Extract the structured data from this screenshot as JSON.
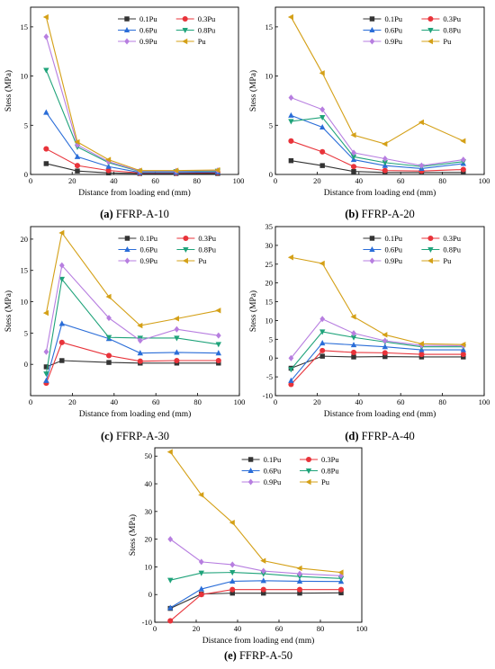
{
  "chart_data": [
    {
      "type": "line",
      "caption_letter": "(a)",
      "caption_text": " FFRP-A-10",
      "xlabel": "Distance from loading end (mm)",
      "ylabel": "Stess (MPa)",
      "xlim": [
        0,
        100
      ],
      "ylim": [
        0,
        17
      ],
      "xticks": [
        0,
        20,
        40,
        60,
        80,
        100
      ],
      "yticks": [
        0,
        5,
        10,
        15
      ],
      "x": [
        7.5,
        22.5,
        37.5,
        52.5,
        70,
        90
      ],
      "series": [
        {
          "name": "0.1Pu",
          "color": "#333333",
          "marker": "square",
          "values": [
            1.1,
            0.35,
            0.15,
            0.1,
            0.1,
            0.1
          ]
        },
        {
          "name": "0.3Pu",
          "color": "#e8333a",
          "marker": "circle",
          "values": [
            2.6,
            0.9,
            0.4,
            0.15,
            0.15,
            0.2
          ]
        },
        {
          "name": "0.6Pu",
          "color": "#2a6dd8",
          "marker": "tri-up",
          "values": [
            6.3,
            1.8,
            0.8,
            0.2,
            0.2,
            0.25
          ]
        },
        {
          "name": "0.8Pu",
          "color": "#1fa37a",
          "marker": "tri-down",
          "values": [
            10.6,
            2.8,
            1.2,
            0.3,
            0.3,
            0.35
          ]
        },
        {
          "name": "0.9Pu",
          "color": "#b77ee0",
          "marker": "diamond",
          "values": [
            14.0,
            3.0,
            1.3,
            0.35,
            0.35,
            0.4
          ]
        },
        {
          "name": "Pu",
          "color": "#d4a017",
          "marker": "tri-left",
          "values": [
            16.0,
            3.3,
            1.5,
            0.4,
            0.4,
            0.45
          ]
        }
      ]
    },
    {
      "type": "line",
      "caption_letter": "(b)",
      "caption_text": " FFRP-A-20",
      "xlabel": "Distance from loading end (mm)",
      "ylabel": "Stess (MPa)",
      "xlim": [
        0,
        100
      ],
      "ylim": [
        0,
        17
      ],
      "xticks": [
        0,
        20,
        40,
        60,
        80,
        100
      ],
      "yticks": [
        0,
        5,
        10,
        15
      ],
      "x": [
        7.5,
        22.5,
        37.5,
        52.5,
        70,
        90
      ],
      "series": [
        {
          "name": "0.1Pu",
          "color": "#333333",
          "marker": "square",
          "values": [
            1.4,
            0.9,
            0.3,
            0.2,
            0.2,
            0.2
          ]
        },
        {
          "name": "0.3Pu",
          "color": "#e8333a",
          "marker": "circle",
          "values": [
            3.4,
            2.3,
            0.8,
            0.4,
            0.35,
            0.5
          ]
        },
        {
          "name": "0.6Pu",
          "color": "#2a6dd8",
          "marker": "tri-up",
          "values": [
            6.0,
            4.8,
            1.5,
            0.9,
            0.6,
            1.1
          ]
        },
        {
          "name": "0.8Pu",
          "color": "#1fa37a",
          "marker": "tri-down",
          "values": [
            5.4,
            5.8,
            1.8,
            1.2,
            0.8,
            1.3
          ]
        },
        {
          "name": "0.9Pu",
          "color": "#b77ee0",
          "marker": "diamond",
          "values": [
            7.8,
            6.6,
            2.2,
            1.6,
            0.9,
            1.5
          ]
        },
        {
          "name": "Pu",
          "color": "#d4a017",
          "marker": "tri-left",
          "values": [
            16.0,
            10.3,
            4.0,
            3.1,
            5.3,
            3.4
          ]
        }
      ]
    },
    {
      "type": "line",
      "caption_letter": "(c)",
      "caption_text": " FFRP-A-30",
      "xlabel": "Distance from loading end (mm)",
      "ylabel": "Stess (MPa)",
      "xlim": [
        0,
        100
      ],
      "ylim": [
        -5,
        22
      ],
      "xticks": [
        0,
        20,
        40,
        60,
        80,
        100
      ],
      "yticks": [
        0,
        5,
        10,
        15,
        20
      ],
      "x": [
        7.5,
        15,
        37.5,
        52.5,
        70,
        90
      ],
      "series": [
        {
          "name": "0.1Pu",
          "color": "#333333",
          "marker": "square",
          "values": [
            -0.4,
            0.6,
            0.3,
            0.2,
            0.2,
            0.2
          ]
        },
        {
          "name": "0.3Pu",
          "color": "#e8333a",
          "marker": "circle",
          "values": [
            -3.0,
            3.5,
            1.4,
            0.5,
            0.6,
            0.6
          ]
        },
        {
          "name": "0.6Pu",
          "color": "#2a6dd8",
          "marker": "tri-up",
          "values": [
            -2.6,
            6.5,
            4.1,
            1.8,
            1.9,
            1.8
          ]
        },
        {
          "name": "0.8Pu",
          "color": "#1fa37a",
          "marker": "tri-down",
          "values": [
            -1.5,
            13.6,
            4.3,
            4.2,
            4.2,
            3.2
          ]
        },
        {
          "name": "0.9Pu",
          "color": "#b77ee0",
          "marker": "diamond",
          "values": [
            2.0,
            15.8,
            7.4,
            3.8,
            5.6,
            4.6
          ]
        },
        {
          "name": "Pu",
          "color": "#d4a017",
          "marker": "tri-left",
          "values": [
            8.2,
            21.0,
            10.8,
            6.2,
            7.3,
            8.6
          ]
        }
      ]
    },
    {
      "type": "line",
      "caption_letter": "(d)",
      "caption_text": " FFRP-A-40",
      "xlabel": "Distance from loading end (mm)",
      "ylabel": "Stess (MPa)",
      "xlim": [
        0,
        100
      ],
      "ylim": [
        -10,
        35
      ],
      "xticks": [
        0,
        20,
        40,
        60,
        80,
        100
      ],
      "yticks": [
        -10,
        -5,
        0,
        5,
        10,
        15,
        20,
        25,
        30,
        35
      ],
      "x": [
        7.5,
        22.5,
        37.5,
        52.5,
        70,
        90
      ],
      "series": [
        {
          "name": "0.1Pu",
          "color": "#333333",
          "marker": "square",
          "values": [
            -2.7,
            0.5,
            0.3,
            0.4,
            0.3,
            0.3
          ]
        },
        {
          "name": "0.3Pu",
          "color": "#e8333a",
          "marker": "circle",
          "values": [
            -7.0,
            2.0,
            1.5,
            1.4,
            1.0,
            1.0
          ]
        },
        {
          "name": "0.6Pu",
          "color": "#2a6dd8",
          "marker": "tri-up",
          "values": [
            -6.0,
            4.0,
            3.5,
            3.0,
            2.2,
            2.2
          ]
        },
        {
          "name": "0.8Pu",
          "color": "#1fa37a",
          "marker": "tri-down",
          "values": [
            -3.0,
            7.0,
            5.5,
            4.3,
            3.0,
            3.0
          ]
        },
        {
          "name": "0.9Pu",
          "color": "#b77ee0",
          "marker": "diamond",
          "values": [
            0.0,
            10.4,
            6.6,
            4.6,
            3.4,
            3.3
          ]
        },
        {
          "name": "Pu",
          "color": "#d4a017",
          "marker": "tri-left",
          "values": [
            26.8,
            25.2,
            11.0,
            6.2,
            3.8,
            3.6
          ]
        }
      ]
    },
    {
      "type": "line",
      "caption_letter": "(e)",
      "caption_text": " FFRP-A-50",
      "xlabel": "Distance from loading end (mm)",
      "ylabel": "Stess (MPa)",
      "xlim": [
        0,
        100
      ],
      "ylim": [
        -10,
        53
      ],
      "xticks": [
        0,
        20,
        40,
        60,
        80,
        100
      ],
      "yticks": [
        -10,
        0,
        10,
        20,
        30,
        40,
        50
      ],
      "x": [
        7.5,
        22.5,
        37.5,
        52.5,
        70,
        90
      ],
      "series": [
        {
          "name": "0.1Pu",
          "color": "#333333",
          "marker": "square",
          "values": [
            -5.0,
            0.2,
            0.5,
            0.5,
            0.5,
            0.6
          ]
        },
        {
          "name": "0.3Pu",
          "color": "#e8333a",
          "marker": "circle",
          "values": [
            -9.5,
            0.0,
            1.8,
            1.8,
            1.8,
            1.8
          ]
        },
        {
          "name": "0.6Pu",
          "color": "#2a6dd8",
          "marker": "tri-up",
          "values": [
            -4.8,
            2.0,
            4.8,
            5.0,
            4.8,
            4.7
          ]
        },
        {
          "name": "0.8Pu",
          "color": "#1fa37a",
          "marker": "tri-down",
          "values": [
            5.2,
            7.8,
            8.0,
            7.5,
            6.5,
            5.8
          ]
        },
        {
          "name": "0.9Pu",
          "color": "#b77ee0",
          "marker": "diamond",
          "values": [
            20.0,
            11.8,
            10.8,
            8.5,
            7.5,
            6.8
          ]
        },
        {
          "name": "Pu",
          "color": "#d4a017",
          "marker": "tri-left",
          "values": [
            51.5,
            36.0,
            26.0,
            12.2,
            9.5,
            8.0
          ]
        }
      ]
    }
  ]
}
